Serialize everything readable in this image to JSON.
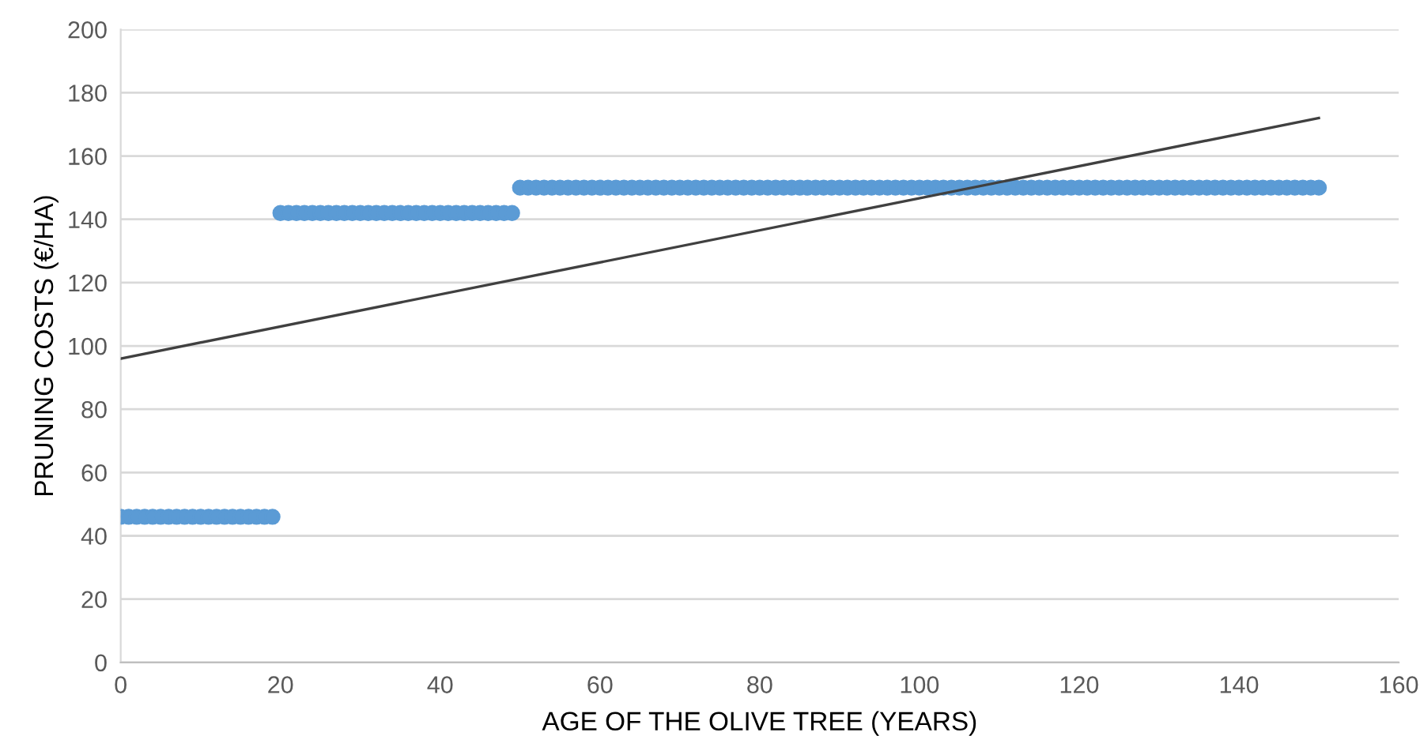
{
  "chart_data": {
    "type": "scatter",
    "xlabel": "AGE OF THE OLIVE TREE (YEARS)",
    "ylabel": "PRUNING COSTS (€/HA)",
    "xlim": [
      0,
      160
    ],
    "xticks": [
      0,
      20,
      40,
      60,
      80,
      100,
      120,
      140,
      160
    ],
    "ylim": [
      0,
      200
    ],
    "yticks": [
      0,
      20,
      40,
      60,
      80,
      100,
      120,
      140,
      160,
      180,
      200
    ],
    "grid": "y",
    "series": [
      {
        "color": "#5b9bd5",
        "marker": "circle",
        "x": [
          0,
          1,
          2,
          3,
          4,
          5,
          6,
          7,
          8,
          9,
          10,
          11,
          12,
          13,
          14,
          15,
          16,
          17,
          18,
          19,
          20,
          21,
          22,
          23,
          24,
          25,
          26,
          27,
          28,
          29,
          30,
          31,
          32,
          33,
          34,
          35,
          36,
          37,
          38,
          39,
          40,
          41,
          42,
          43,
          44,
          45,
          46,
          47,
          48,
          49,
          50,
          51,
          52,
          53,
          54,
          55,
          56,
          57,
          58,
          59,
          60,
          61,
          62,
          63,
          64,
          65,
          66,
          67,
          68,
          69,
          70,
          71,
          72,
          73,
          74,
          75,
          76,
          77,
          78,
          79,
          80,
          81,
          82,
          83,
          84,
          85,
          86,
          87,
          88,
          89,
          90,
          91,
          92,
          93,
          94,
          95,
          96,
          97,
          98,
          99,
          100,
          101,
          102,
          103,
          104,
          105,
          106,
          107,
          108,
          109,
          110,
          111,
          112,
          113,
          114,
          115,
          116,
          117,
          118,
          119,
          120,
          121,
          122,
          123,
          124,
          125,
          126,
          127,
          128,
          129,
          130,
          131,
          132,
          133,
          134,
          135,
          136,
          137,
          138,
          139,
          140,
          141,
          142,
          143,
          144,
          145,
          146,
          147,
          148,
          149,
          150
        ],
        "values": [
          46,
          46,
          46,
          46,
          46,
          46,
          46,
          46,
          46,
          46,
          46,
          46,
          46,
          46,
          46,
          46,
          46,
          46,
          46,
          46,
          142,
          142,
          142,
          142,
          142,
          142,
          142,
          142,
          142,
          142,
          142,
          142,
          142,
          142,
          142,
          142,
          142,
          142,
          142,
          142,
          142,
          142,
          142,
          142,
          142,
          142,
          142,
          142,
          142,
          142,
          150,
          150,
          150,
          150,
          150,
          150,
          150,
          150,
          150,
          150,
          150,
          150,
          150,
          150,
          150,
          150,
          150,
          150,
          150,
          150,
          150,
          150,
          150,
          150,
          150,
          150,
          150,
          150,
          150,
          150,
          150,
          150,
          150,
          150,
          150,
          150,
          150,
          150,
          150,
          150,
          150,
          150,
          150,
          150,
          150,
          150,
          150,
          150,
          150,
          150,
          150,
          150,
          150,
          150,
          150,
          150,
          150,
          150,
          150,
          150,
          150,
          150,
          150,
          150,
          150,
          150,
          150,
          150,
          150,
          150,
          150,
          150,
          150,
          150,
          150,
          150,
          150,
          150,
          150,
          150,
          150,
          150,
          150,
          150,
          150,
          150,
          150,
          150,
          150,
          150,
          150,
          150,
          150,
          150,
          150,
          150,
          150,
          150,
          150,
          150,
          150
        ]
      },
      {
        "type": "line",
        "color": "#404040",
        "marker": "none",
        "line_style": "solid",
        "x": [
          0,
          150
        ],
        "values": [
          96,
          172
        ]
      }
    ]
  }
}
